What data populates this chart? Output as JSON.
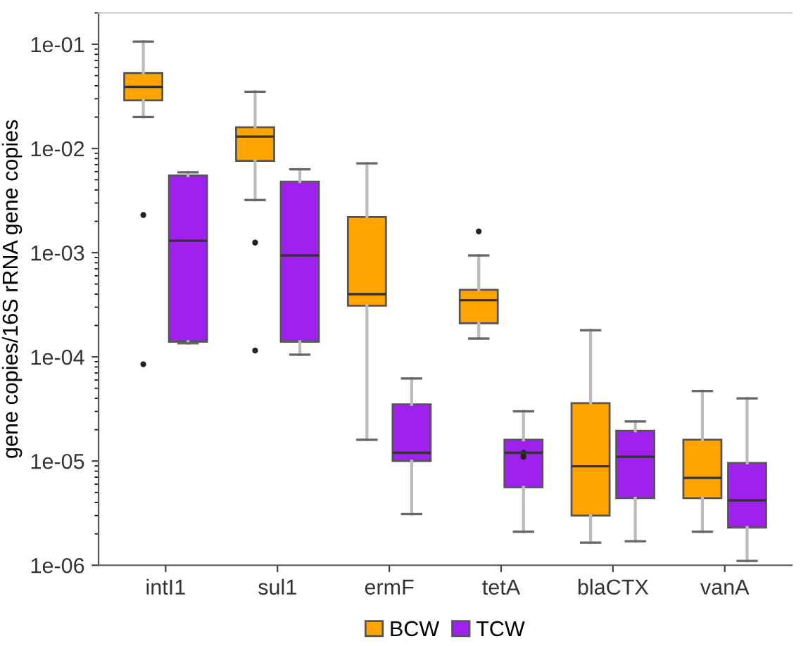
{
  "chart_data": {
    "type": "box",
    "ylabel": "gene copies/16S rRNA gene copies",
    "categories": [
      "intI1",
      "sul1",
      "ermF",
      "tetA",
      "blaCTX",
      "vanA"
    ],
    "log": true,
    "ylim": [
      1e-06,
      0.2
    ],
    "yticks": [
      {
        "value": 0.1,
        "label": "1e-01"
      },
      {
        "value": 0.01,
        "label": "1e-02"
      },
      {
        "value": 0.001,
        "label": "1e-03"
      },
      {
        "value": 0.0001,
        "label": "1e-04"
      },
      {
        "value": 1e-05,
        "label": "1e-05"
      },
      {
        "value": 1e-06,
        "label": "1e-06"
      }
    ],
    "legend": "bottom",
    "series": [
      {
        "name": "BCW",
        "color": "#ffa500",
        "boxes": [
          {
            "low": 0.02,
            "q1": 0.029,
            "median": 0.039,
            "q3": 0.053,
            "high": 0.106,
            "outliers": [
              0.0023,
              8.5e-05
            ]
          },
          {
            "low": 0.0032,
            "q1": 0.0076,
            "median": 0.013,
            "q3": 0.016,
            "high": 0.035,
            "outliers": [
              0.00125,
              0.000115
            ]
          },
          {
            "low": 1.6e-05,
            "q1": 0.00031,
            "median": 0.0004,
            "q3": 0.0022,
            "high": 0.0072
          },
          {
            "low": 0.00015,
            "q1": 0.00021,
            "median": 0.00035,
            "q3": 0.00044,
            "high": 0.00094,
            "outliers": [
              0.0016
            ]
          },
          {
            "low": 1.65e-06,
            "q1": 3e-06,
            "median": 8.9e-06,
            "q3": 3.6e-05,
            "high": 0.00018
          },
          {
            "low": 2.1e-06,
            "q1": 4.4e-06,
            "median": 6.9e-06,
            "q3": 1.6e-05,
            "high": 4.7e-05
          }
        ]
      },
      {
        "name": "TCW",
        "color": "#a020f0",
        "boxes": [
          {
            "low": 0.000135,
            "q1": 0.00014,
            "median": 0.0013,
            "q3": 0.0055,
            "high": 0.0059
          },
          {
            "low": 0.000105,
            "q1": 0.00014,
            "median": 0.00094,
            "q3": 0.0048,
            "high": 0.0063
          },
          {
            "low": 3.1e-06,
            "q1": 1e-05,
            "median": 1.2e-05,
            "q3": 3.5e-05,
            "high": 6.2e-05
          },
          {
            "low": 2.1e-06,
            "q1": 5.6e-06,
            "median": 1.2e-05,
            "q3": 1.6e-05,
            "high": 3e-05,
            "outliers": [
              1.2e-05,
              1.1e-05
            ]
          },
          {
            "low": 1.7e-06,
            "q1": 4.4e-06,
            "median": 1.1e-05,
            "q3": 1.95e-05,
            "high": 2.4e-05
          },
          {
            "low": 1.1e-06,
            "q1": 2.3e-06,
            "median": 4.2e-06,
            "q3": 9.6e-06,
            "high": 4e-05
          }
        ]
      }
    ]
  }
}
